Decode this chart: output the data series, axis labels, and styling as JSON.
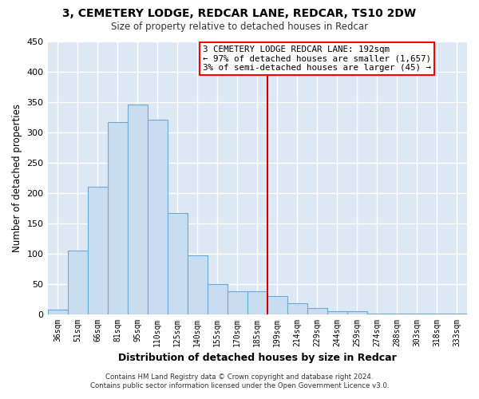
{
  "title": "3, CEMETERY LODGE, REDCAR LANE, REDCAR, TS10 2DW",
  "subtitle": "Size of property relative to detached houses in Redcar",
  "xlabel": "Distribution of detached houses by size in Redcar",
  "ylabel": "Number of detached properties",
  "bar_color": "#c9ddf0",
  "bar_edge_color": "#6aaad4",
  "plot_bg_color": "#dde8f5",
  "fig_bg_color": "#ffffff",
  "grid_color": "#ffffff",
  "categories": [
    "36sqm",
    "51sqm",
    "66sqm",
    "81sqm",
    "95sqm",
    "110sqm",
    "125sqm",
    "140sqm",
    "155sqm",
    "170sqm",
    "185sqm",
    "199sqm",
    "214sqm",
    "229sqm",
    "244sqm",
    "259sqm",
    "274sqm",
    "288sqm",
    "303sqm",
    "318sqm",
    "333sqm"
  ],
  "values": [
    7,
    105,
    210,
    317,
    345,
    320,
    166,
    97,
    50,
    37,
    37,
    30,
    18,
    10,
    5,
    5,
    1,
    1,
    1,
    1,
    1
  ],
  "vline_color": "#cc0000",
  "vline_x_index": 11,
  "ylim": [
    0,
    450
  ],
  "yticks": [
    0,
    50,
    100,
    150,
    200,
    250,
    300,
    350,
    400,
    450
  ],
  "annotation_title": "3 CEMETERY LODGE REDCAR LANE: 192sqm",
  "annotation_line1": "← 97% of detached houses are smaller (1,657)",
  "annotation_line2": "3% of semi-detached houses are larger (45) →",
  "footer_line1": "Contains HM Land Registry data © Crown copyright and database right 2024.",
  "footer_line2": "Contains public sector information licensed under the Open Government Licence v3.0."
}
